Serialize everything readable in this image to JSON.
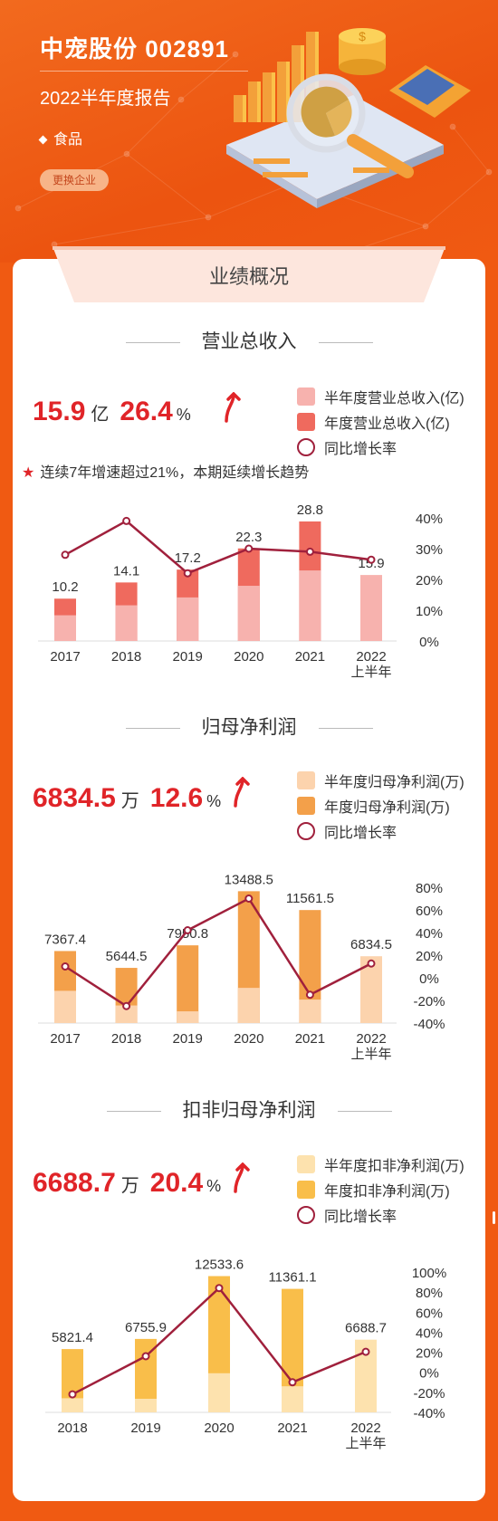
{
  "header": {
    "title": "中宠股份 002891",
    "subtitle": "2022半年度报告",
    "industry": "食品",
    "switch_label": "更换企业"
  },
  "tab_label": "业绩概况",
  "colors": {
    "background": "#f05a12",
    "kpi_red": "#e02428",
    "growth_line": "#a0203c",
    "revenue_half": "#f7b2ae",
    "revenue_year": "#ef6a5e",
    "profit_half": "#fcd3ad",
    "profit_year": "#f3a04a",
    "deducted_half": "#fde2ae",
    "deducted_year": "#f9be4a"
  },
  "sections": [
    {
      "title": "营业总收入",
      "kpi_value": "15.9",
      "kpi_unit": "亿",
      "kpi_growth": "26.4",
      "kpi_pct": "%",
      "legend": [
        "半年度营业总收入(亿)",
        "年度营业总收入(亿)",
        "同比增长率"
      ],
      "note": "连续7年增速超过21%，本期延续增长趋势"
    },
    {
      "title": "归母净利润",
      "kpi_value": "6834.5",
      "kpi_unit": "万",
      "kpi_growth": "12.6",
      "kpi_pct": "%",
      "legend": [
        "半年度归母净利润(万)",
        "年度归母净利润(万)",
        "同比增长率"
      ]
    },
    {
      "title": "扣非归母净利润",
      "kpi_value": "6688.7",
      "kpi_unit": "万",
      "kpi_growth": "20.4",
      "kpi_pct": "%",
      "legend": [
        "半年度扣非净利润(万)",
        "年度扣非净利润(万)",
        "同比增长率"
      ]
    }
  ],
  "chart_data": [
    {
      "type": "bar",
      "title": "营业总收入",
      "categories": [
        "2017",
        "2018",
        "2019",
        "2020",
        "2021",
        "2022\n上半年"
      ],
      "series": [
        {
          "name": "半年度营业总收入(亿)",
          "values": [
            6.2,
            8.6,
            10.5,
            13.3,
            17.0,
            15.9
          ]
        },
        {
          "name": "年度营业总收入(亿)",
          "values": [
            10.2,
            14.1,
            17.2,
            22.3,
            28.8,
            null
          ]
        },
        {
          "name": "同比增长率",
          "values": [
            28.0,
            39.0,
            22.0,
            30.0,
            29.0,
            26.4
          ]
        }
      ],
      "data_labels": [
        "10.2",
        "14.1",
        "17.2",
        "22.3",
        "28.8",
        "15.9"
      ],
      "right_axis_ticks": [
        "40%",
        "30%",
        "20%",
        "10%",
        "0%"
      ],
      "right_ylim": [
        0,
        40
      ]
    },
    {
      "type": "bar",
      "title": "归母净利润",
      "categories": [
        "2017",
        "2018",
        "2019",
        "2020",
        "2021",
        "2022\n上半年"
      ],
      "series": [
        {
          "name": "半年度归母净利润(万)",
          "values": [
            3300,
            1800,
            1200,
            3600,
            2400,
            6834.5
          ]
        },
        {
          "name": "年度归母净利润(万)",
          "values": [
            7367.4,
            5644.5,
            7950.8,
            13488.5,
            11561.5,
            null
          ]
        },
        {
          "name": "同比增长率",
          "values": [
            10,
            -25,
            42,
            70,
            -15,
            12.6
          ]
        }
      ],
      "data_labels": [
        "7367.4",
        "5644.5",
        "7950.8",
        "13488.5",
        "11561.5",
        "6834.5"
      ],
      "right_axis_ticks": [
        "80%",
        "60%",
        "40%",
        "20%",
        "0%",
        "-20%",
        "-40%"
      ],
      "right_ylim": [
        -40,
        80
      ]
    },
    {
      "type": "bar",
      "title": "扣非归母净利润",
      "categories": [
        "2018",
        "2019",
        "2020",
        "2021",
        "2022\n上半年"
      ],
      "series": [
        {
          "name": "半年度扣非净利润(万)",
          "values": [
            1300,
            1250,
            3600,
            2400,
            6688.7
          ]
        },
        {
          "name": "年度扣非净利润(万)",
          "values": [
            5821.4,
            6755.9,
            12533.6,
            11361.1,
            null
          ]
        },
        {
          "name": "同比增长率",
          "values": [
            -22,
            16,
            84,
            -10,
            20.4
          ]
        }
      ],
      "data_labels": [
        "5821.4",
        "6755.9",
        "12533.6",
        "11361.1",
        "6688.7"
      ],
      "right_axis_ticks": [
        "100%",
        "80%",
        "60%",
        "40%",
        "20%",
        "0%",
        "-20%",
        "-40%"
      ],
      "right_ylim": [
        -40,
        100
      ]
    }
  ]
}
